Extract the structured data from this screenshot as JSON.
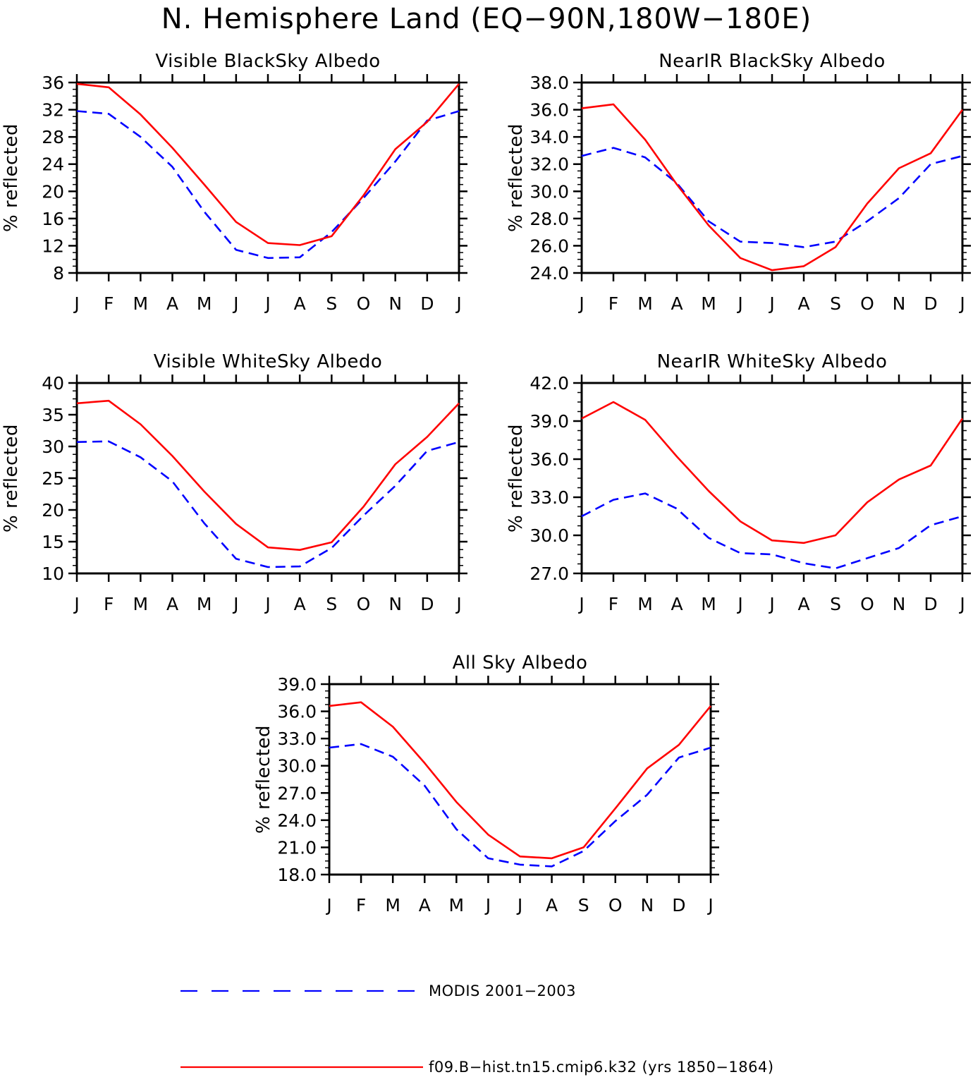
{
  "page_title": "N. Hemisphere Land (EQ−90N,180W−180E)",
  "series_styles": [
    {
      "name": "MODIS 2001−2003",
      "color": "#0000ff",
      "dash": "dashed"
    },
    {
      "name": "f09.B−hist.tn15.cmip6.k32 (yrs 1850−1864)",
      "color": "#ff0000",
      "dash": "solid"
    }
  ],
  "legend": {
    "modis_label": "MODIS 2001−2003",
    "model_label": "f09.B−hist.tn15.cmip6.k32 (yrs 1850−1864)"
  },
  "chart_data": [
    {
      "type": "line",
      "title": "Visible BlackSky Albedo",
      "ylabel": "% reflected",
      "xlabel": "",
      "x": [
        "J",
        "F",
        "M",
        "A",
        "M",
        "J",
        "J",
        "A",
        "S",
        "O",
        "N",
        "D",
        "J"
      ],
      "ylim": [
        8,
        36
      ],
      "yticks": [
        "8",
        "12",
        "16",
        "20",
        "24",
        "28",
        "32",
        "36"
      ],
      "series": [
        {
          "values": [
            31.8,
            31.4,
            28.0,
            23.6,
            17.0,
            11.4,
            10.2,
            10.3,
            14.0,
            19.0,
            24.4,
            30.4,
            31.8
          ]
        },
        {
          "values": [
            35.8,
            35.3,
            31.3,
            26.4,
            21.0,
            15.5,
            12.4,
            12.1,
            13.4,
            19.4,
            26.2,
            30.2,
            35.8
          ]
        }
      ]
    },
    {
      "type": "line",
      "title": "NearIR BlackSky Albedo",
      "ylabel": "% reflected",
      "xlabel": "",
      "x": [
        "J",
        "F",
        "M",
        "A",
        "M",
        "J",
        "J",
        "A",
        "S",
        "O",
        "N",
        "D",
        "J"
      ],
      "ylim": [
        24,
        38
      ],
      "yticks": [
        "24.0",
        "26.0",
        "28.0",
        "30.0",
        "32.0",
        "34.0",
        "36.0",
        "38.0"
      ],
      "series": [
        {
          "values": [
            32.6,
            33.2,
            32.5,
            30.6,
            27.8,
            26.3,
            26.2,
            25.9,
            26.3,
            27.8,
            29.5,
            32.0,
            32.6
          ]
        },
        {
          "values": [
            36.1,
            36.4,
            33.8,
            30.5,
            27.5,
            25.1,
            24.2,
            24.5,
            25.9,
            29.1,
            31.7,
            32.8,
            36.0
          ]
        }
      ]
    },
    {
      "type": "line",
      "title": "Visible WhiteSky Albedo",
      "ylabel": "% reflected",
      "xlabel": "",
      "x": [
        "J",
        "F",
        "M",
        "A",
        "M",
        "J",
        "J",
        "A",
        "S",
        "O",
        "N",
        "D",
        "J"
      ],
      "ylim": [
        10,
        40
      ],
      "yticks": [
        "10",
        "15",
        "20",
        "25",
        "30",
        "35",
        "40"
      ],
      "series": [
        {
          "values": [
            30.7,
            30.8,
            28.3,
            24.5,
            17.9,
            12.3,
            11.0,
            11.1,
            14.0,
            19.1,
            23.8,
            29.3,
            30.7
          ]
        },
        {
          "values": [
            36.8,
            37.2,
            33.5,
            28.5,
            22.9,
            17.8,
            14.1,
            13.7,
            14.9,
            20.5,
            27.2,
            31.5,
            36.8
          ]
        }
      ]
    },
    {
      "type": "line",
      "title": "NearIR WhiteSky Albedo",
      "ylabel": "% reflected",
      "xlabel": "",
      "x": [
        "J",
        "F",
        "M",
        "A",
        "M",
        "J",
        "J",
        "A",
        "S",
        "O",
        "N",
        "D",
        "J"
      ],
      "ylim": [
        27,
        42
      ],
      "yticks": [
        "27.0",
        "30.0",
        "33.0",
        "36.0",
        "39.0",
        "42.0"
      ],
      "series": [
        {
          "values": [
            31.5,
            32.8,
            33.3,
            32.1,
            29.8,
            28.6,
            28.5,
            27.8,
            27.4,
            28.2,
            29.0,
            30.8,
            31.5
          ]
        },
        {
          "values": [
            39.2,
            40.5,
            39.1,
            36.2,
            33.5,
            31.1,
            29.6,
            29.4,
            30.0,
            32.6,
            34.4,
            35.5,
            39.2
          ]
        }
      ]
    },
    {
      "type": "line",
      "title": "All Sky Albedo",
      "ylabel": "% reflected",
      "xlabel": "",
      "x": [
        "J",
        "F",
        "M",
        "A",
        "M",
        "J",
        "J",
        "A",
        "S",
        "O",
        "N",
        "D",
        "J"
      ],
      "ylim": [
        18,
        39
      ],
      "yticks": [
        "18.0",
        "21.0",
        "24.0",
        "27.0",
        "30.0",
        "33.0",
        "36.0",
        "39.0"
      ],
      "series": [
        {
          "values": [
            32.0,
            32.4,
            31.0,
            27.8,
            23.0,
            19.8,
            19.1,
            18.9,
            20.6,
            23.9,
            26.8,
            30.9,
            32.0
          ]
        },
        {
          "values": [
            36.6,
            37.0,
            34.3,
            30.3,
            26.0,
            22.4,
            20.0,
            19.8,
            21.0,
            25.3,
            29.7,
            32.3,
            36.6
          ]
        }
      ]
    }
  ]
}
